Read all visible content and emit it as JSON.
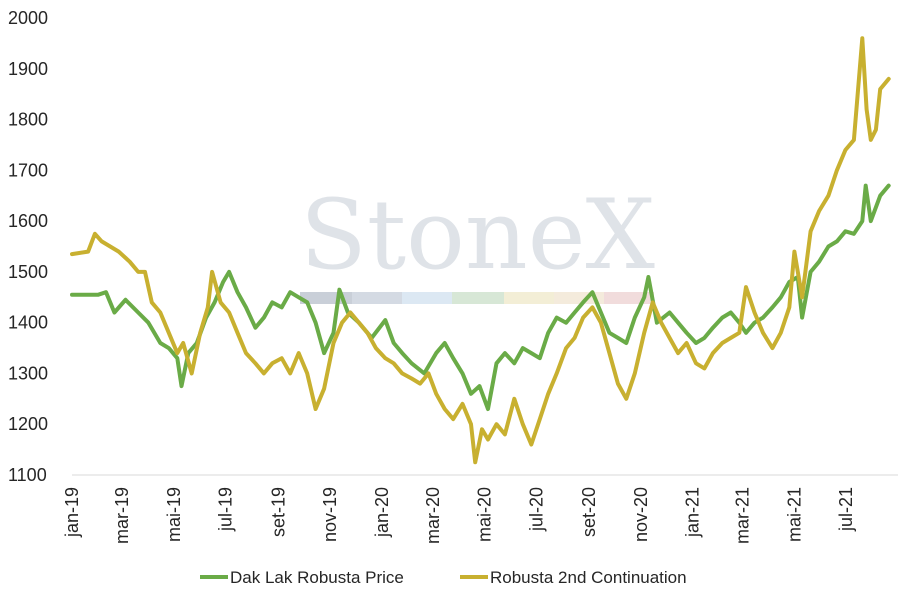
{
  "chart_data": {
    "type": "line",
    "ylim": [
      1100,
      2000
    ],
    "yticks": [
      1100,
      1200,
      1300,
      1400,
      1500,
      1600,
      1700,
      1800,
      1900,
      2000
    ],
    "xlim": [
      "2019-01-01",
      "2021-08-31"
    ],
    "xticks": [
      "2019-01-01",
      "2019-03-01",
      "2019-05-01",
      "2019-07-01",
      "2019-09-01",
      "2019-11-01",
      "2020-01-01",
      "2020-03-01",
      "2020-05-01",
      "2020-07-01",
      "2020-09-01",
      "2020-11-01",
      "2021-01-01",
      "2021-03-01",
      "2021-05-01",
      "2021-07-01"
    ],
    "xtick_labels": [
      "jan-19",
      "mar-19",
      "mai-19",
      "jul-19",
      "set-19",
      "nov-19",
      "jan-20",
      "mar-20",
      "mai-20",
      "jul-20",
      "set-20",
      "nov-20",
      "jan-21",
      "mar-21",
      "mai-21",
      "jul-21"
    ],
    "grid": false,
    "legend_position": "bottom",
    "watermark": "StoneX",
    "series": [
      {
        "name": "Dak Lak Robusta Price",
        "color": "#6aab47",
        "points": [
          [
            "2019-01-01",
            1455
          ],
          [
            "2019-02-01",
            1455
          ],
          [
            "2019-02-10",
            1460
          ],
          [
            "2019-02-20",
            1420
          ],
          [
            "2019-03-05",
            1445
          ],
          [
            "2019-03-20",
            1420
          ],
          [
            "2019-04-01",
            1400
          ],
          [
            "2019-04-15",
            1360
          ],
          [
            "2019-04-25",
            1350
          ],
          [
            "2019-05-05",
            1330
          ],
          [
            "2019-05-10",
            1275
          ],
          [
            "2019-05-18",
            1340
          ],
          [
            "2019-05-28",
            1360
          ],
          [
            "2019-06-08",
            1410
          ],
          [
            "2019-06-18",
            1440
          ],
          [
            "2019-06-28",
            1480
          ],
          [
            "2019-07-05",
            1500
          ],
          [
            "2019-07-15",
            1460
          ],
          [
            "2019-07-25",
            1430
          ],
          [
            "2019-08-05",
            1390
          ],
          [
            "2019-08-15",
            1410
          ],
          [
            "2019-08-25",
            1440
          ],
          [
            "2019-09-05",
            1430
          ],
          [
            "2019-09-15",
            1460
          ],
          [
            "2019-09-25",
            1450
          ],
          [
            "2019-10-05",
            1440
          ],
          [
            "2019-10-15",
            1400
          ],
          [
            "2019-10-25",
            1340
          ],
          [
            "2019-11-05",
            1380
          ],
          [
            "2019-11-12",
            1465
          ],
          [
            "2019-11-22",
            1420
          ],
          [
            "2019-12-05",
            1400
          ],
          [
            "2019-12-20",
            1370
          ],
          [
            "2020-01-05",
            1405
          ],
          [
            "2020-01-15",
            1360
          ],
          [
            "2020-01-25",
            1340
          ],
          [
            "2020-02-05",
            1320
          ],
          [
            "2020-02-20",
            1300
          ],
          [
            "2020-03-05",
            1340
          ],
          [
            "2020-03-15",
            1360
          ],
          [
            "2020-03-25",
            1330
          ],
          [
            "2020-04-05",
            1300
          ],
          [
            "2020-04-15",
            1260
          ],
          [
            "2020-04-25",
            1275
          ],
          [
            "2020-05-05",
            1230
          ],
          [
            "2020-05-15",
            1320
          ],
          [
            "2020-05-25",
            1340
          ],
          [
            "2020-06-05",
            1320
          ],
          [
            "2020-06-15",
            1350
          ],
          [
            "2020-06-25",
            1340
          ],
          [
            "2020-07-05",
            1330
          ],
          [
            "2020-07-15",
            1380
          ],
          [
            "2020-07-25",
            1410
          ],
          [
            "2020-08-05",
            1400
          ],
          [
            "2020-08-15",
            1420
          ],
          [
            "2020-08-25",
            1440
          ],
          [
            "2020-09-05",
            1460
          ],
          [
            "2020-09-15",
            1420
          ],
          [
            "2020-09-25",
            1380
          ],
          [
            "2020-10-05",
            1370
          ],
          [
            "2020-10-15",
            1360
          ],
          [
            "2020-10-25",
            1410
          ],
          [
            "2020-11-05",
            1450
          ],
          [
            "2020-11-10",
            1490
          ],
          [
            "2020-11-20",
            1400
          ],
          [
            "2020-12-05",
            1420
          ],
          [
            "2020-12-15",
            1400
          ],
          [
            "2020-12-25",
            1380
          ],
          [
            "2021-01-05",
            1360
          ],
          [
            "2021-01-15",
            1370
          ],
          [
            "2021-01-25",
            1390
          ],
          [
            "2021-02-05",
            1410
          ],
          [
            "2021-02-15",
            1420
          ],
          [
            "2021-02-25",
            1400
          ],
          [
            "2021-03-05",
            1380
          ],
          [
            "2021-03-15",
            1400
          ],
          [
            "2021-03-25",
            1410
          ],
          [
            "2021-04-05",
            1430
          ],
          [
            "2021-04-15",
            1450
          ],
          [
            "2021-04-25",
            1480
          ],
          [
            "2021-05-05",
            1490
          ],
          [
            "2021-05-10",
            1410
          ],
          [
            "2021-05-20",
            1500
          ],
          [
            "2021-05-30",
            1520
          ],
          [
            "2021-06-10",
            1550
          ],
          [
            "2021-06-20",
            1560
          ],
          [
            "2021-06-30",
            1580
          ],
          [
            "2021-07-10",
            1575
          ],
          [
            "2021-07-20",
            1600
          ],
          [
            "2021-07-24",
            1670
          ],
          [
            "2021-07-30",
            1600
          ],
          [
            "2021-08-10",
            1650
          ],
          [
            "2021-08-20",
            1670
          ]
        ]
      },
      {
        "name": "Robusta 2nd Continuation",
        "color": "#c8b030",
        "points": [
          [
            "2019-01-01",
            1535
          ],
          [
            "2019-01-20",
            1540
          ],
          [
            "2019-01-28",
            1575
          ],
          [
            "2019-02-05",
            1560
          ],
          [
            "2019-02-15",
            1550
          ],
          [
            "2019-02-25",
            1540
          ],
          [
            "2019-03-10",
            1520
          ],
          [
            "2019-03-20",
            1500
          ],
          [
            "2019-03-28",
            1500
          ],
          [
            "2019-04-05",
            1440
          ],
          [
            "2019-04-15",
            1420
          ],
          [
            "2019-04-25",
            1380
          ],
          [
            "2019-05-05",
            1340
          ],
          [
            "2019-05-12",
            1360
          ],
          [
            "2019-05-22",
            1300
          ],
          [
            "2019-06-01",
            1380
          ],
          [
            "2019-06-10",
            1430
          ],
          [
            "2019-06-15",
            1500
          ],
          [
            "2019-06-25",
            1440
          ],
          [
            "2019-07-05",
            1420
          ],
          [
            "2019-07-15",
            1380
          ],
          [
            "2019-07-25",
            1340
          ],
          [
            "2019-08-05",
            1320
          ],
          [
            "2019-08-15",
            1300
          ],
          [
            "2019-08-25",
            1320
          ],
          [
            "2019-09-05",
            1330
          ],
          [
            "2019-09-15",
            1300
          ],
          [
            "2019-09-25",
            1340
          ],
          [
            "2019-10-05",
            1300
          ],
          [
            "2019-10-15",
            1230
          ],
          [
            "2019-10-25",
            1270
          ],
          [
            "2019-11-05",
            1360
          ],
          [
            "2019-11-15",
            1400
          ],
          [
            "2019-11-25",
            1420
          ],
          [
            "2019-12-05",
            1400
          ],
          [
            "2019-12-15",
            1380
          ],
          [
            "2019-12-25",
            1350
          ],
          [
            "2020-01-05",
            1330
          ],
          [
            "2020-01-15",
            1320
          ],
          [
            "2020-01-25",
            1300
          ],
          [
            "2020-02-05",
            1290
          ],
          [
            "2020-02-15",
            1280
          ],
          [
            "2020-02-25",
            1300
          ],
          [
            "2020-03-05",
            1260
          ],
          [
            "2020-03-15",
            1230
          ],
          [
            "2020-03-25",
            1210
          ],
          [
            "2020-04-05",
            1240
          ],
          [
            "2020-04-15",
            1200
          ],
          [
            "2020-04-20",
            1125
          ],
          [
            "2020-04-28",
            1190
          ],
          [
            "2020-05-05",
            1170
          ],
          [
            "2020-05-15",
            1200
          ],
          [
            "2020-05-25",
            1180
          ],
          [
            "2020-06-05",
            1250
          ],
          [
            "2020-06-15",
            1200
          ],
          [
            "2020-06-25",
            1160
          ],
          [
            "2020-07-05",
            1210
          ],
          [
            "2020-07-15",
            1260
          ],
          [
            "2020-07-25",
            1300
          ],
          [
            "2020-08-05",
            1350
          ],
          [
            "2020-08-15",
            1370
          ],
          [
            "2020-08-25",
            1410
          ],
          [
            "2020-09-05",
            1430
          ],
          [
            "2020-09-15",
            1400
          ],
          [
            "2020-09-25",
            1340
          ],
          [
            "2020-10-05",
            1280
          ],
          [
            "2020-10-15",
            1250
          ],
          [
            "2020-10-25",
            1300
          ],
          [
            "2020-11-05",
            1380
          ],
          [
            "2020-11-15",
            1440
          ],
          [
            "2020-11-25",
            1400
          ],
          [
            "2020-12-05",
            1370
          ],
          [
            "2020-12-15",
            1340
          ],
          [
            "2020-12-25",
            1360
          ],
          [
            "2021-01-05",
            1320
          ],
          [
            "2021-01-15",
            1310
          ],
          [
            "2021-01-25",
            1340
          ],
          [
            "2021-02-05",
            1360
          ],
          [
            "2021-02-15",
            1370
          ],
          [
            "2021-02-25",
            1380
          ],
          [
            "2021-03-05",
            1470
          ],
          [
            "2021-03-15",
            1420
          ],
          [
            "2021-03-25",
            1380
          ],
          [
            "2021-04-05",
            1350
          ],
          [
            "2021-04-15",
            1380
          ],
          [
            "2021-04-25",
            1430
          ],
          [
            "2021-05-01",
            1540
          ],
          [
            "2021-05-10",
            1450
          ],
          [
            "2021-05-20",
            1580
          ],
          [
            "2021-05-30",
            1620
          ],
          [
            "2021-06-10",
            1650
          ],
          [
            "2021-06-20",
            1700
          ],
          [
            "2021-06-30",
            1740
          ],
          [
            "2021-07-10",
            1760
          ],
          [
            "2021-07-15",
            1860
          ],
          [
            "2021-07-20",
            1960
          ],
          [
            "2021-07-25",
            1820
          ],
          [
            "2021-07-30",
            1760
          ],
          [
            "2021-08-05",
            1780
          ],
          [
            "2021-08-10",
            1860
          ],
          [
            "2021-08-20",
            1880
          ]
        ]
      }
    ]
  }
}
